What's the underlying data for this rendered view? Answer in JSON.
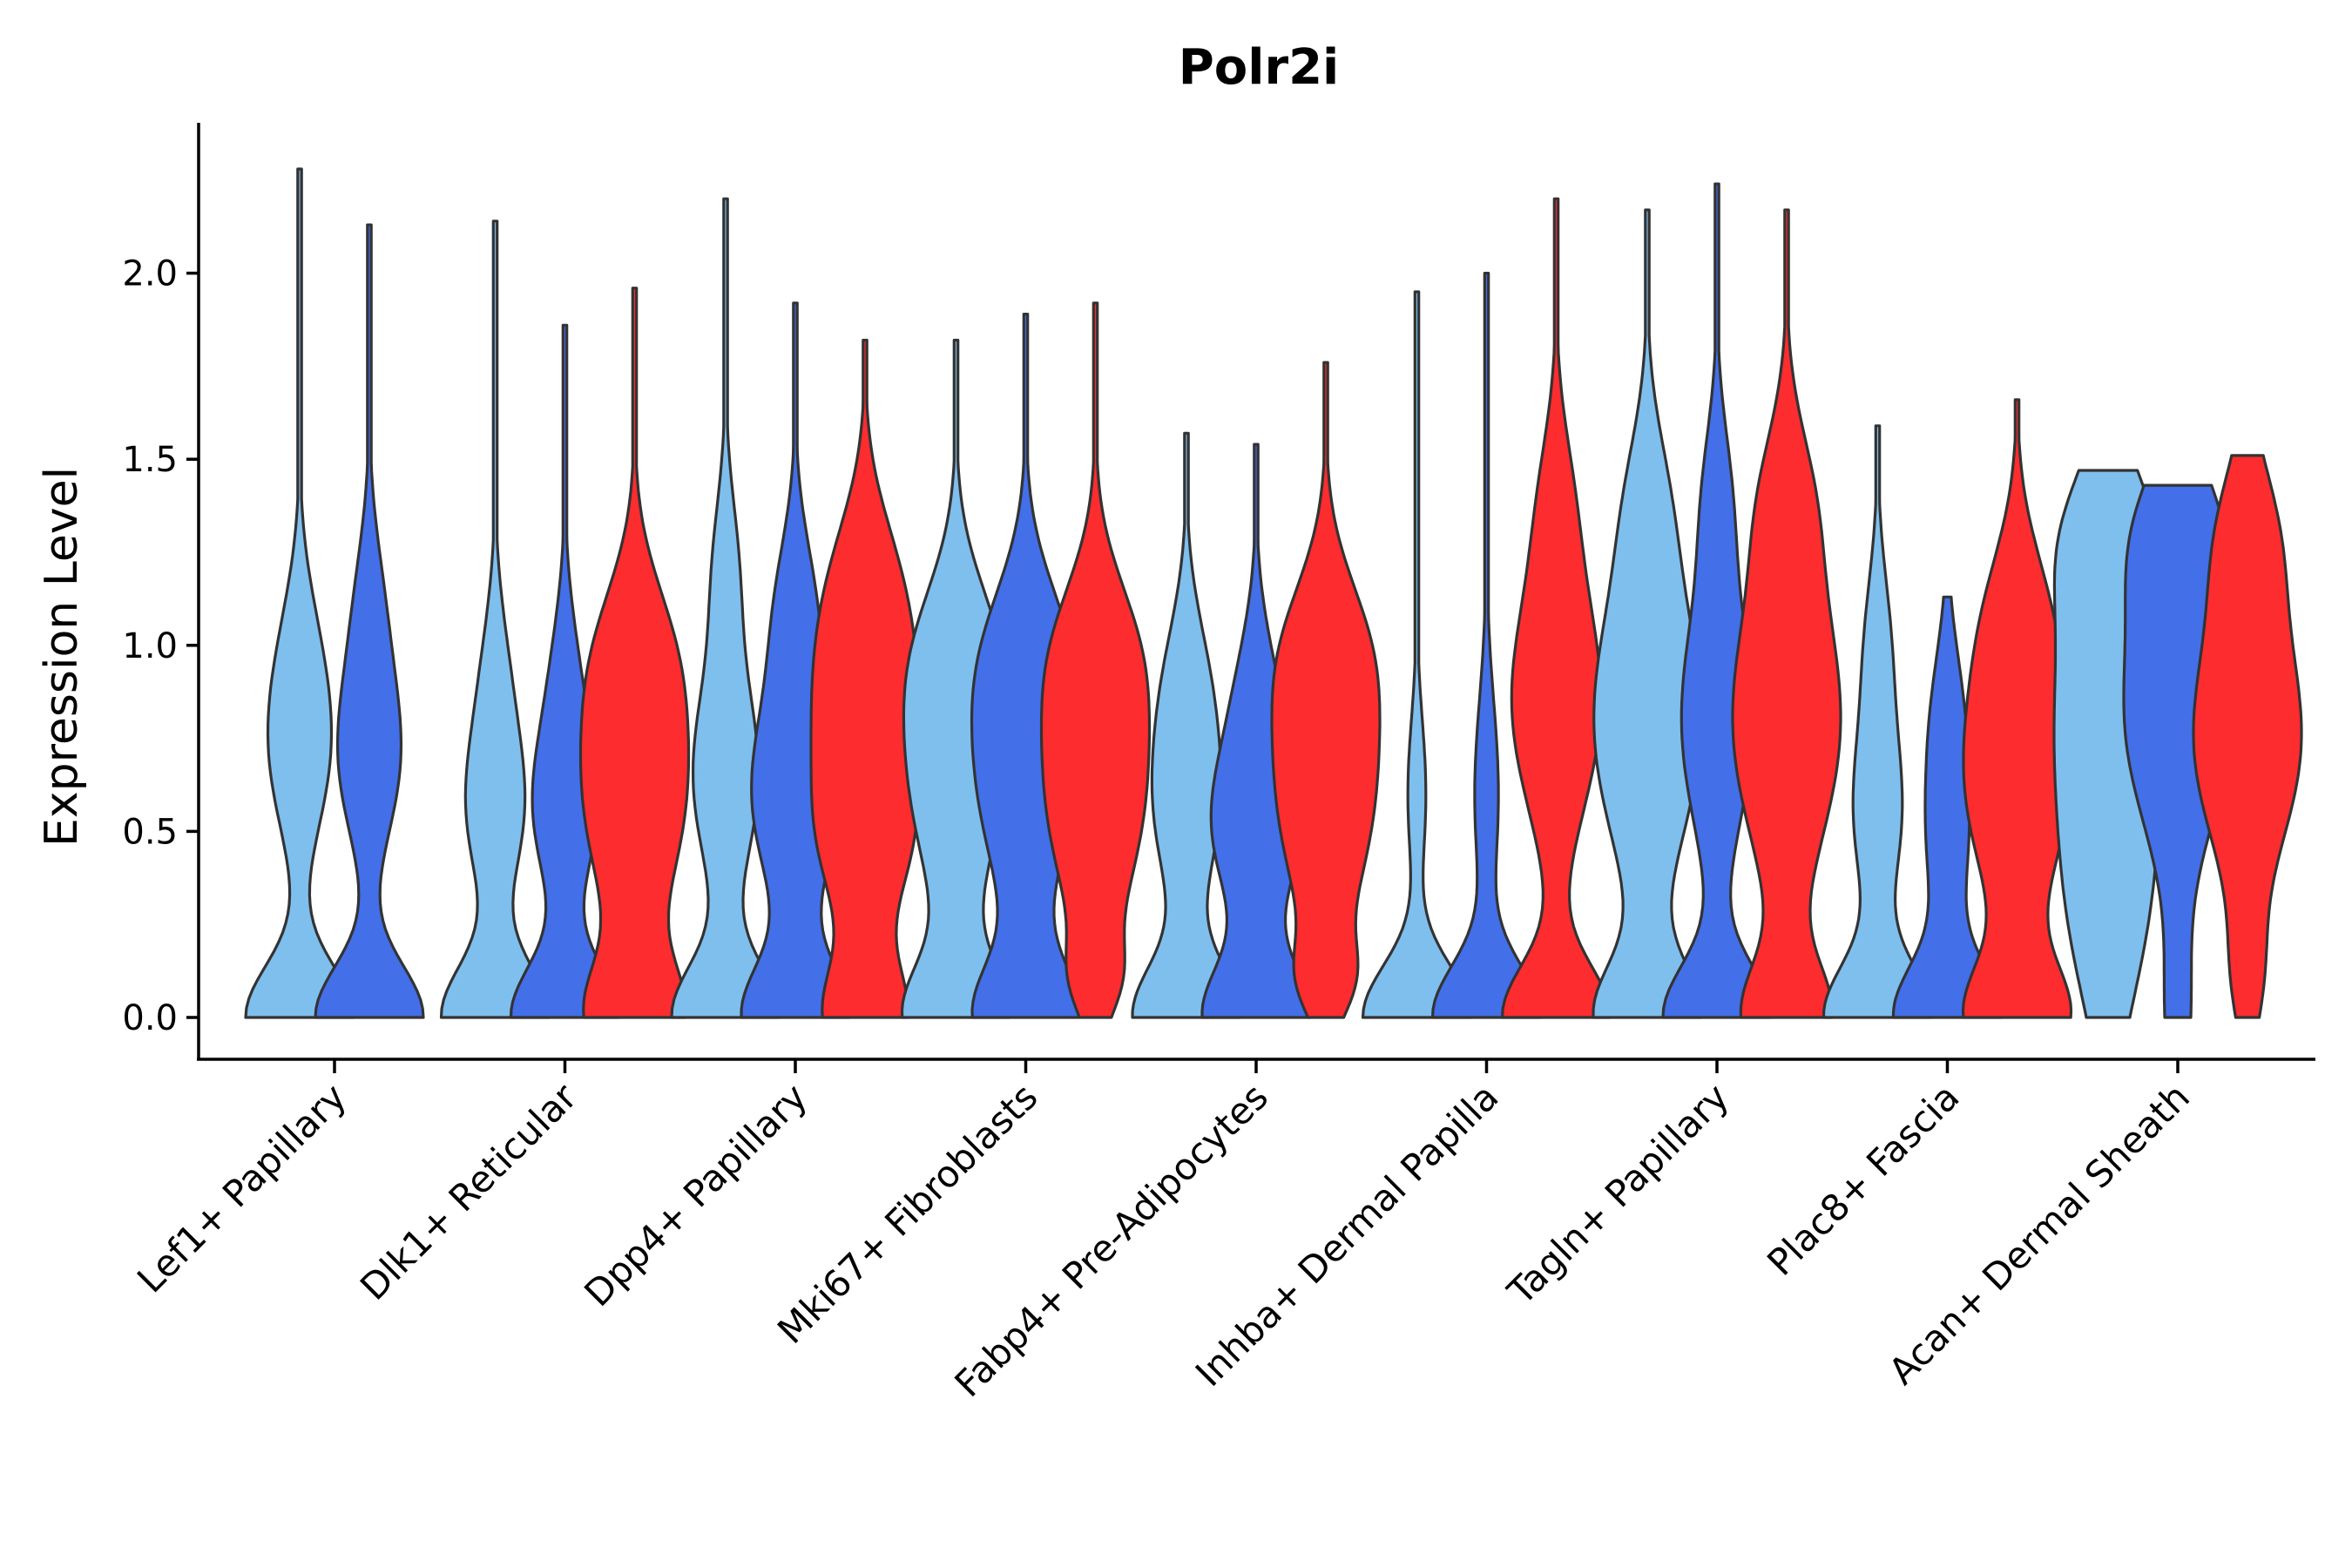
{
  "chart_data": {
    "type": "violin",
    "title": "Polr2i",
    "xlabel": "",
    "ylabel": "Expression Level",
    "ylim": [
      -0.12,
      2.4
    ],
    "yticks": [
      0.0,
      0.5,
      1.0,
      1.5,
      2.0
    ],
    "ytick_labels": [
      "0.0",
      "0.5",
      "1.0",
      "1.5",
      "2.0"
    ],
    "colors": {
      "group1": "#7fbfee",
      "group2": "#436fe9",
      "group3": "#fd2c2f"
    },
    "categories": [
      {
        "label": "Lef1+ Papillary",
        "violins": [
          {
            "group": 1,
            "max": 2.28,
            "peaks": [
              [
                0.0,
                0.9,
                0.14
              ],
              [
                0.7,
                0.45,
                0.22
              ],
              [
                1.0,
                0.2,
                0.2
              ]
            ]
          },
          {
            "group": 2,
            "max": 2.13,
            "peaks": [
              [
                0.0,
                0.9,
                0.14
              ],
              [
                0.7,
                0.5,
                0.22
              ],
              [
                1.1,
                0.2,
                0.2
              ]
            ]
          }
        ]
      },
      {
        "label": "Dlk1+ Reticular",
        "violins": [
          {
            "group": 1,
            "max": 2.14,
            "peaks": [
              [
                0.0,
                0.9,
                0.14
              ],
              [
                0.55,
                0.45,
                0.2
              ],
              [
                0.9,
                0.2,
                0.2
              ]
            ]
          },
          {
            "group": 2,
            "max": 1.86,
            "peaks": [
              [
                0.0,
                0.9,
                0.14
              ],
              [
                0.55,
                0.5,
                0.2
              ],
              [
                0.9,
                0.2,
                0.2
              ]
            ]
          },
          {
            "group": 3,
            "max": 1.96,
            "peaks": [
              [
                0.0,
                0.8,
                0.14
              ],
              [
                0.6,
                0.9,
                0.3
              ],
              [
                1.0,
                0.4,
                0.2
              ]
            ]
          }
        ]
      },
      {
        "label": "Dpp4+ Papillary",
        "violins": [
          {
            "group": 1,
            "max": 2.2,
            "peaks": [
              [
                0.0,
                0.9,
                0.14
              ],
              [
                0.65,
                0.55,
                0.25
              ],
              [
                1.2,
                0.2,
                0.2
              ]
            ]
          },
          {
            "group": 2,
            "max": 1.92,
            "peaks": [
              [
                0.0,
                0.9,
                0.14
              ],
              [
                0.6,
                0.75,
                0.25
              ],
              [
                1.1,
                0.3,
                0.2
              ]
            ]
          },
          {
            "group": 3,
            "max": 1.82,
            "peaks": [
              [
                0.0,
                0.8,
                0.14
              ],
              [
                0.45,
                0.7,
                0.2
              ],
              [
                0.85,
                0.9,
                0.25
              ],
              [
                1.2,
                0.4,
                0.2
              ]
            ]
          }
        ]
      },
      {
        "label": "Mki67+ Fibroblasts",
        "violins": [
          {
            "group": 1,
            "max": 1.82,
            "peaks": [
              [
                0.0,
                0.9,
                0.14
              ],
              [
                0.65,
                0.8,
                0.3
              ],
              [
                1.0,
                0.4,
                0.2
              ]
            ]
          },
          {
            "group": 2,
            "max": 1.89,
            "peaks": [
              [
                0.0,
                0.9,
                0.14
              ],
              [
                0.65,
                0.85,
                0.3
              ],
              [
                1.0,
                0.4,
                0.2
              ]
            ]
          },
          {
            "group": 3,
            "max": 1.92,
            "peaks": [
              [
                0.1,
                0.3,
                0.1
              ],
              [
                0.6,
                0.9,
                0.3
              ],
              [
                1.0,
                0.5,
                0.2
              ]
            ]
          }
        ]
      },
      {
        "label": "Fabp4+ Pre-Adipocytes",
        "violins": [
          {
            "group": 1,
            "max": 1.57,
            "peaks": [
              [
                0.0,
                0.9,
                0.14
              ],
              [
                0.55,
                0.5,
                0.22
              ],
              [
                0.9,
                0.3,
                0.2
              ]
            ]
          },
          {
            "group": 2,
            "max": 1.54,
            "peaks": [
              [
                0.0,
                0.9,
                0.14
              ],
              [
                0.5,
                0.7,
                0.2
              ],
              [
                0.85,
                0.3,
                0.2
              ]
            ]
          },
          {
            "group": 3,
            "max": 1.76,
            "peaks": [
              [
                0.1,
                0.35,
                0.1
              ],
              [
                0.6,
                0.85,
                0.3
              ],
              [
                1.0,
                0.5,
                0.2
              ]
            ]
          }
        ]
      },
      {
        "label": "Inhba+ Dermal Papilla",
        "violins": [
          {
            "group": 1,
            "max": 1.95,
            "peaks": [
              [
                0.0,
                0.9,
                0.14
              ],
              [
                0.6,
                0.15,
                0.2
              ]
            ]
          },
          {
            "group": 2,
            "max": 2.0,
            "peaks": [
              [
                0.0,
                0.9,
                0.14
              ],
              [
                0.6,
                0.2,
                0.25
              ]
            ]
          },
          {
            "group": 3,
            "max": 2.2,
            "peaks": [
              [
                0.0,
                0.9,
                0.14
              ],
              [
                0.85,
                0.75,
                0.3
              ],
              [
                1.4,
                0.2,
                0.2
              ]
            ]
          }
        ]
      },
      {
        "label": "Tagln+ Papillary",
        "violins": [
          {
            "group": 1,
            "max": 2.17,
            "peaks": [
              [
                0.0,
                0.8,
                0.14
              ],
              [
                0.8,
                0.85,
                0.35
              ],
              [
                1.4,
                0.2,
                0.2
              ]
            ]
          },
          {
            "group": 2,
            "max": 2.24,
            "peaks": [
              [
                0.0,
                0.9,
                0.14
              ],
              [
                0.8,
                0.6,
                0.3
              ],
              [
                1.4,
                0.2,
                0.2
              ]
            ]
          },
          {
            "group": 3,
            "max": 2.17,
            "peaks": [
              [
                0.0,
                0.7,
                0.14
              ],
              [
                0.8,
                0.9,
                0.35
              ],
              [
                1.4,
                0.3,
                0.2
              ]
            ]
          }
        ]
      },
      {
        "label": "Plac8+ Fascia",
        "violins": [
          {
            "group": 1,
            "max": 1.59,
            "peaks": [
              [
                0.0,
                0.9,
                0.14
              ],
              [
                0.55,
                0.4,
                0.22
              ],
              [
                1.0,
                0.2,
                0.2
              ]
            ]
          },
          {
            "group": 2,
            "max": 1.13,
            "peaks": [
              [
                0.0,
                0.9,
                0.14
              ],
              [
                0.45,
                0.3,
                0.2
              ],
              [
                0.8,
                0.25,
                0.2
              ]
            ]
          },
          {
            "group": 3,
            "max": 1.66,
            "peaks": [
              [
                0.0,
                0.8,
                0.14
              ],
              [
                0.65,
                0.85,
                0.3
              ],
              [
                1.1,
                0.3,
                0.2
              ]
            ]
          }
        ]
      },
      {
        "label": "Acan+ Dermal Sheath",
        "violins": [
          {
            "group": 1,
            "max": 1.47,
            "peaks": [
              [
                0.3,
                0.7,
                0.3
              ],
              [
                0.85,
                0.9,
                0.3
              ],
              [
                1.3,
                0.7,
                0.2
              ]
            ]
          },
          {
            "group": 2,
            "max": 1.43,
            "peaks": [
              [
                0.0,
                0.2,
                0.2
              ],
              [
                0.8,
                0.9,
                0.3
              ],
              [
                1.3,
                0.6,
                0.2
              ]
            ]
          },
          {
            "group": 3,
            "max": 1.51,
            "peaks": [
              [
                0.1,
                0.2,
                0.15
              ],
              [
                0.75,
                0.9,
                0.3
              ],
              [
                1.3,
                0.4,
                0.2
              ]
            ]
          }
        ]
      }
    ]
  }
}
